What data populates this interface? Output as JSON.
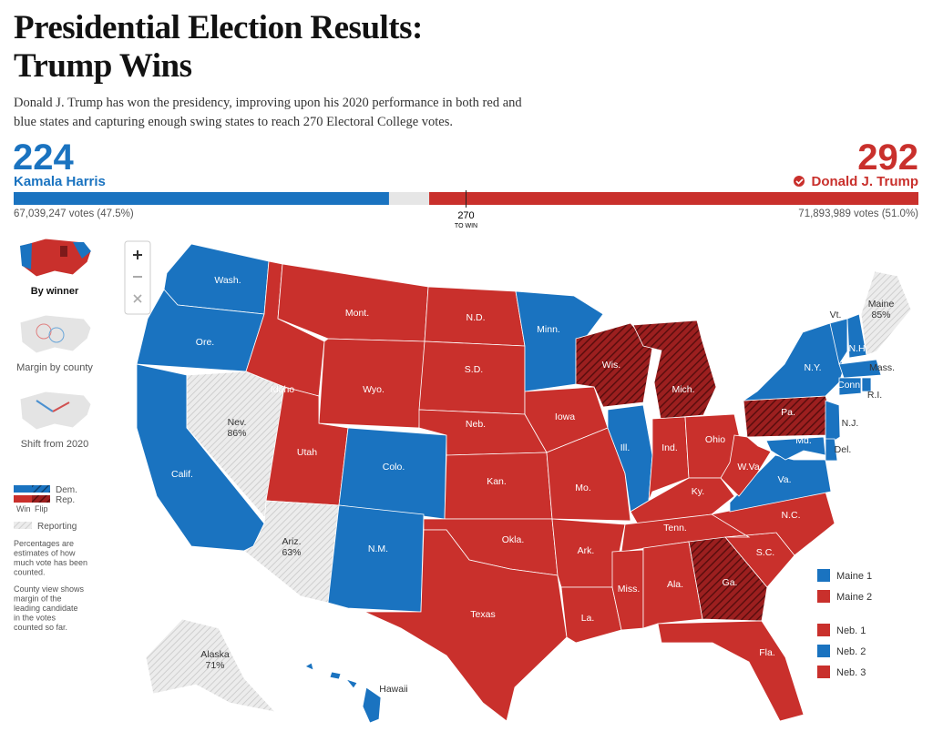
{
  "header": {
    "title": "Presidential Election Results: Trump Wins",
    "subtitle": "Donald J. Trump has won the presidency, improving upon his 2020 performance in both red and blue states and capturing enough swing states to reach 270 Electoral College votes."
  },
  "colors": {
    "dem": "#1a73c0",
    "rep": "#c9302c",
    "flip": "#7d1a1a",
    "reporting": "#e0e0e0"
  },
  "tally": {
    "dem": {
      "electoral_votes": 224,
      "candidate": "Kamala Harris",
      "popular_vote": "67,039,247 votes (47.5%)"
    },
    "rep": {
      "electoral_votes": 292,
      "candidate": "Donald J. Trump",
      "popular_vote": "71,893,989 votes (51.0%)"
    },
    "threshold": 270,
    "threshold_label": "TO WIN"
  },
  "views": [
    "By winner",
    "Margin by county",
    "Shift from 2020"
  ],
  "legend": {
    "dem": "Dem.",
    "rep": "Rep.",
    "win": "Win",
    "flip": "Flip",
    "reporting": "Reporting"
  },
  "notes": [
    "Percentages are estimates of how much vote has been counted.",
    "County view shows margin of the leading candidate in the votes counted so far."
  ],
  "states": [
    {
      "label": "Wash.",
      "winner": "dem"
    },
    {
      "label": "Ore.",
      "winner": "dem"
    },
    {
      "label": "Calif.",
      "winner": "dem"
    },
    {
      "label": "Nev.",
      "status": "reporting",
      "reporting": "86%"
    },
    {
      "label": "Idaho",
      "winner": "rep"
    },
    {
      "label": "Mont.",
      "winner": "rep"
    },
    {
      "label": "Wyo.",
      "winner": "rep"
    },
    {
      "label": "Utah",
      "winner": "rep"
    },
    {
      "label": "Ariz.",
      "status": "reporting",
      "reporting": "63%"
    },
    {
      "label": "Colo.",
      "winner": "dem"
    },
    {
      "label": "N.M.",
      "winner": "dem"
    },
    {
      "label": "N.D.",
      "winner": "rep"
    },
    {
      "label": "S.D.",
      "winner": "rep"
    },
    {
      "label": "Neb.",
      "winner": "rep"
    },
    {
      "label": "Kan.",
      "winner": "rep"
    },
    {
      "label": "Okla.",
      "winner": "rep"
    },
    {
      "label": "Texas",
      "winner": "rep"
    },
    {
      "label": "Minn.",
      "winner": "dem"
    },
    {
      "label": "Iowa",
      "winner": "rep"
    },
    {
      "label": "Mo.",
      "winner": "rep"
    },
    {
      "label": "Ark.",
      "winner": "rep"
    },
    {
      "label": "La.",
      "winner": "rep"
    },
    {
      "label": "Wis.",
      "winner": "rep",
      "flip": true
    },
    {
      "label": "Ill.",
      "winner": "dem"
    },
    {
      "label": "Mich.",
      "winner": "rep",
      "flip": true
    },
    {
      "label": "Ind.",
      "winner": "rep"
    },
    {
      "label": "Ohio",
      "winner": "rep"
    },
    {
      "label": "Ky.",
      "winner": "rep"
    },
    {
      "label": "Tenn.",
      "winner": "rep"
    },
    {
      "label": "Miss.",
      "winner": "rep"
    },
    {
      "label": "Ala.",
      "winner": "rep"
    },
    {
      "label": "Ga.",
      "winner": "rep",
      "flip": true
    },
    {
      "label": "Fla.",
      "winner": "rep"
    },
    {
      "label": "S.C.",
      "winner": "rep"
    },
    {
      "label": "N.C.",
      "winner": "rep"
    },
    {
      "label": "Va.",
      "winner": "dem"
    },
    {
      "label": "W.Va.",
      "winner": "rep"
    },
    {
      "label": "Pa.",
      "winner": "rep",
      "flip": true
    },
    {
      "label": "N.Y.",
      "winner": "dem"
    },
    {
      "label": "N.J.",
      "winner": "dem"
    },
    {
      "label": "Md.",
      "winner": "dem"
    },
    {
      "label": "Del.",
      "winner": "dem"
    },
    {
      "label": "Vt.",
      "winner": "dem"
    },
    {
      "label": "N.H.",
      "winner": "dem"
    },
    {
      "label": "Maine",
      "status": "reporting",
      "reporting": "85%"
    },
    {
      "label": "Mass.",
      "winner": "dem"
    },
    {
      "label": "Conn.",
      "winner": "dem"
    },
    {
      "label": "R.I.",
      "winner": "dem"
    },
    {
      "label": "Alaska",
      "status": "reporting",
      "reporting": "71%"
    },
    {
      "label": "Hawaii",
      "winner": "dem"
    }
  ],
  "districts": [
    {
      "label": "Maine 1",
      "winner": "dem"
    },
    {
      "label": "Maine 2",
      "winner": "rep"
    },
    {
      "label": "Neb. 1",
      "winner": "rep"
    },
    {
      "label": "Neb. 2",
      "winner": "dem"
    },
    {
      "label": "Neb. 3",
      "winner": "rep"
    }
  ]
}
